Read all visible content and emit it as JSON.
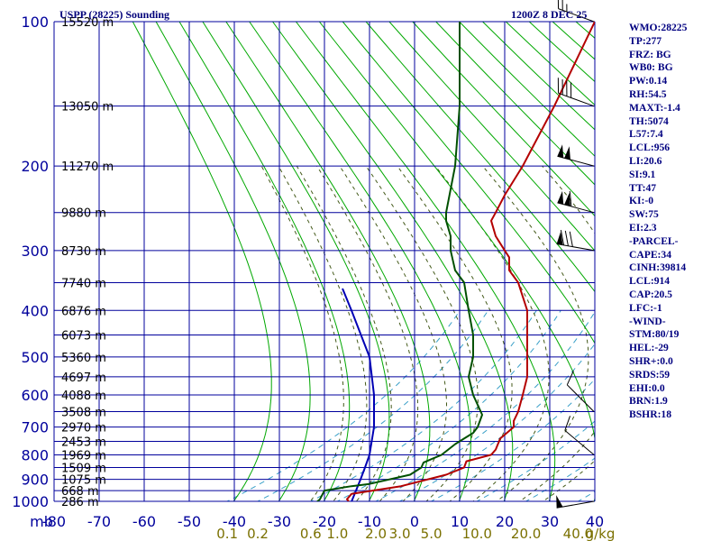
{
  "header": {
    "station": "USPP (28225) Sounding",
    "datetime": "1200Z  8 DEC 25"
  },
  "stats": [
    "WMO:28225",
    "TP:277",
    "FRZ: BG",
    "WB0: BG",
    "PW:0.14",
    "RH:54.5",
    "MAXT:-1.4",
    "TH:5074",
    "L57:7.4",
    "LCL:956",
    "LI:20.6",
    "SI:9.1",
    "TT:47",
    "KI:-0",
    "SW:75",
    "EI:2.3",
    "-PARCEL-",
    "CAPE:34",
    "CINH:39814",
    "LCL:914",
    "CAP:20.5",
    "LFC:-1",
    "-WIND-",
    "STM:80/19",
    "HEL:-29",
    "SHR+:0.0",
    "SRDS:59",
    "EHI:0.0",
    "BRN:1.9",
    "BSHR:18"
  ],
  "colors": {
    "grid": "#00009c",
    "dry_adiabat": "#00a800",
    "moist_adiabat": "#445a1a",
    "mixing_ratio": "#3aa0c8",
    "temperature": "#b40000",
    "dewpoint": "#005000",
    "parcel": "#0000b4",
    "axis_text": "#00009c",
    "mixing_text": "#7a7000",
    "wind": "#000000"
  },
  "chart_data": {
    "type": "skew-t",
    "xlabel": "mb",
    "temperature_ticks": [
      -80,
      -70,
      -60,
      -50,
      -40,
      -30,
      -20,
      -10,
      0,
      10,
      20,
      30,
      40
    ],
    "temperature_tick_labels": [
      "-80",
      "-70",
      "-60",
      "-50",
      "-40",
      "-30",
      "-20",
      "-10",
      "0",
      "10",
      "20",
      "30",
      "40"
    ],
    "pressure_ticks": [
      100,
      200,
      300,
      400,
      500,
      600,
      700,
      800,
      900,
      1000
    ],
    "pressure_tick_labels": [
      "100",
      "200",
      "300",
      "400",
      "500",
      "600",
      "700",
      "800",
      "900",
      "1000"
    ],
    "height_levels": [
      {
        "p": 100,
        "label": "15520 m"
      },
      {
        "p": 150,
        "label": "13050 m"
      },
      {
        "p": 200,
        "label": "11270 m"
      },
      {
        "p": 250,
        "label": "9880 m"
      },
      {
        "p": 300,
        "label": "8730 m"
      },
      {
        "p": 350,
        "label": "7740 m"
      },
      {
        "p": 400,
        "label": "6876 m"
      },
      {
        "p": 450,
        "label": "6073 m"
      },
      {
        "p": 500,
        "label": "5360 m"
      },
      {
        "p": 550,
        "label": "4697 m"
      },
      {
        "p": 600,
        "label": "4088 m"
      },
      {
        "p": 650,
        "label": "3508 m"
      },
      {
        "p": 700,
        "label": "2970 m"
      },
      {
        "p": 750,
        "label": "2453 m"
      },
      {
        "p": 800,
        "label": "1969 m"
      },
      {
        "p": 850,
        "label": "1509 m"
      },
      {
        "p": 900,
        "label": "1075 m"
      },
      {
        "p": 950,
        "label": "668 m"
      },
      {
        "p": 1000,
        "label": "286 m"
      }
    ],
    "mixing_ratio_labels": [
      {
        "w": 0.1,
        "label": "0.1"
      },
      {
        "w": 0.2,
        "label": "0.2"
      },
      {
        "w": 0.6,
        "label": "0.6"
      },
      {
        "w": 1.0,
        "label": "1.0"
      },
      {
        "w": 2.0,
        "label": "2.0"
      },
      {
        "w": 3.0,
        "label": "3.0"
      },
      {
        "w": 5.0,
        "label": "5.0"
      },
      {
        "w": 10.0,
        "label": "10.0"
      },
      {
        "w": 20.0,
        "label": "20.0"
      },
      {
        "w": 40.0,
        "label": "40.0"
      }
    ],
    "mixing_ratio_unit": "g/kg",
    "series": [
      {
        "role": "temperature",
        "points": [
          {
            "p": 1012,
            "t": -13
          },
          {
            "p": 990,
            "t": -16
          },
          {
            "p": 965,
            "t": -17.5
          },
          {
            "p": 930,
            "t": -10
          },
          {
            "p": 880,
            "t": -5
          },
          {
            "p": 850,
            "t": -4
          },
          {
            "p": 825,
            "t": -6
          },
          {
            "p": 800,
            "t": -3
          },
          {
            "p": 780,
            "t": -4
          },
          {
            "p": 740,
            "t": -7
          },
          {
            "p": 700,
            "t": -8
          },
          {
            "p": 680,
            "t": -10
          },
          {
            "p": 650,
            "t": -12
          },
          {
            "p": 600,
            "t": -16
          },
          {
            "p": 550,
            "t": -20
          },
          {
            "p": 500,
            "t": -25
          },
          {
            "p": 450,
            "t": -30
          },
          {
            "p": 400,
            "t": -35
          },
          {
            "p": 350,
            "t": -42
          },
          {
            "p": 330,
            "t": -46
          },
          {
            "p": 310,
            "t": -48
          },
          {
            "p": 300,
            "t": -50
          },
          {
            "p": 280,
            "t": -54
          },
          {
            "p": 260,
            "t": -57
          },
          {
            "p": 250,
            "t": -57
          },
          {
            "p": 230,
            "t": -57
          },
          {
            "p": 200,
            "t": -56
          },
          {
            "p": 150,
            "t": -54
          },
          {
            "p": 100,
            "t": -50
          }
        ]
      },
      {
        "role": "dewpoint",
        "points": [
          {
            "p": 1012,
            "t": -21
          },
          {
            "p": 990,
            "t": -22
          },
          {
            "p": 950,
            "t": -25
          },
          {
            "p": 930,
            "t": -21
          },
          {
            "p": 920,
            "t": -18
          },
          {
            "p": 880,
            "t": -13
          },
          {
            "p": 850,
            "t": -13.5
          },
          {
            "p": 830,
            "t": -15
          },
          {
            "p": 800,
            "t": -14
          },
          {
            "p": 760,
            "t": -15
          },
          {
            "p": 720,
            "t": -15
          },
          {
            "p": 700,
            "t": -16
          },
          {
            "p": 660,
            "t": -19
          },
          {
            "p": 600,
            "t": -27
          },
          {
            "p": 550,
            "t": -33
          },
          {
            "p": 500,
            "t": -37
          },
          {
            "p": 450,
            "t": -42
          },
          {
            "p": 400,
            "t": -48
          },
          {
            "p": 350,
            "t": -54
          },
          {
            "p": 330,
            "t": -58
          },
          {
            "p": 300,
            "t": -62
          },
          {
            "p": 280,
            "t": -64
          },
          {
            "p": 260,
            "t": -67
          },
          {
            "p": 250,
            "t": -68
          },
          {
            "p": 200,
            "t": -71
          },
          {
            "p": 150,
            "t": -75
          },
          {
            "p": 100,
            "t": -80
          }
        ]
      },
      {
        "role": "parcel",
        "points": [
          {
            "p": 1012,
            "t": -13
          },
          {
            "p": 950,
            "t": -18
          },
          {
            "p": 900,
            "t": -22
          },
          {
            "p": 850,
            "t": -26
          },
          {
            "p": 800,
            "t": -30
          },
          {
            "p": 700,
            "t": -39
          },
          {
            "p": 600,
            "t": -49
          },
          {
            "p": 500,
            "t": -60
          },
          {
            "p": 400,
            "t": -74
          },
          {
            "p": 360,
            "t": -80
          }
        ]
      }
    ],
    "wind_barbs": [
      {
        "p": 100,
        "dir": 290,
        "spd": 25
      },
      {
        "p": 150,
        "dir": 290,
        "spd": 40
      },
      {
        "p": 200,
        "dir": 285,
        "spd": 100
      },
      {
        "p": 250,
        "dir": 285,
        "spd": 110
      },
      {
        "p": 300,
        "dir": 280,
        "spd": 80
      },
      {
        "p": 650,
        "dir": 315,
        "spd": 10
      },
      {
        "p": 800,
        "dir": 310,
        "spd": 10
      },
      {
        "p": 1000,
        "dir": 260,
        "spd": 50
      }
    ]
  }
}
